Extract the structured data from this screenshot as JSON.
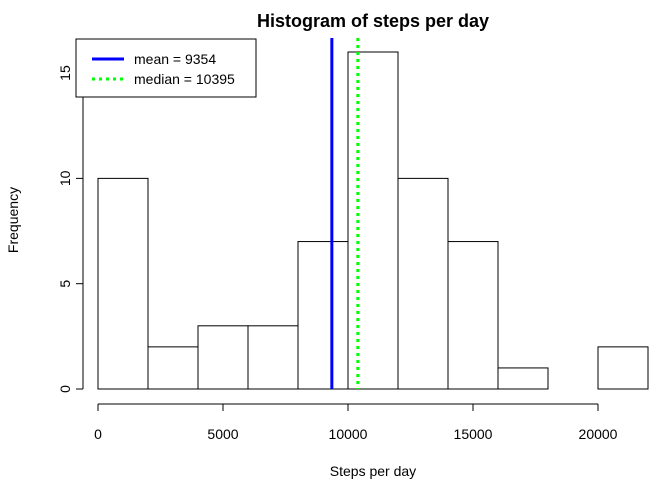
{
  "chart_data": {
    "type": "histogram",
    "title": "Histogram of steps per day",
    "xlabel": "Steps per day",
    "ylabel": "Frequency",
    "xlim": [
      0,
      22000
    ],
    "ylim": [
      0,
      16
    ],
    "x_ticks": [
      0,
      5000,
      10000,
      15000,
      20000
    ],
    "x_tick_labels": [
      "0",
      "5000",
      "10000",
      "15000",
      "20000"
    ],
    "y_ticks": [
      0,
      5,
      10,
      15
    ],
    "y_tick_labels": [
      "0",
      "5",
      "10",
      "15"
    ],
    "bins": [
      {
        "start": 0,
        "end": 2000,
        "count": 10
      },
      {
        "start": 2000,
        "end": 4000,
        "count": 2
      },
      {
        "start": 4000,
        "end": 6000,
        "count": 3
      },
      {
        "start": 6000,
        "end": 8000,
        "count": 3
      },
      {
        "start": 8000,
        "end": 10000,
        "count": 7
      },
      {
        "start": 10000,
        "end": 12000,
        "count": 16
      },
      {
        "start": 12000,
        "end": 14000,
        "count": 10
      },
      {
        "start": 14000,
        "end": 16000,
        "count": 7
      },
      {
        "start": 16000,
        "end": 18000,
        "count": 1
      },
      {
        "start": 18000,
        "end": 20000,
        "count": 0
      },
      {
        "start": 20000,
        "end": 22000,
        "count": 2
      }
    ],
    "reference_lines": [
      {
        "name": "mean",
        "value": 9354,
        "label": "mean = 9354",
        "color": "#0000ff",
        "style": "solid"
      },
      {
        "name": "median",
        "value": 10395,
        "label": "median = 10395",
        "color": "#00ff00",
        "style": "dotted"
      }
    ],
    "legend_position": "top-left"
  }
}
